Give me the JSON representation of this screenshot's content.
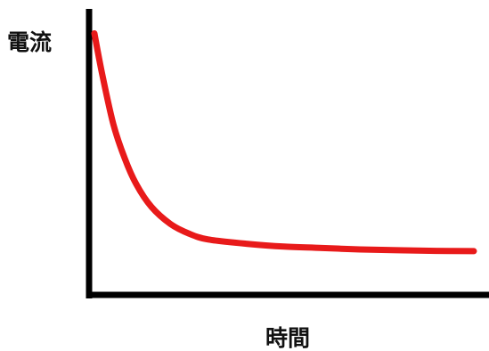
{
  "chart_data": {
    "type": "line",
    "title": "",
    "xlabel": "時間",
    "ylabel": "電流",
    "x_ticks_shown": false,
    "y_ticks_shown": false,
    "grid": false,
    "legend": "none",
    "xlim": [
      0,
      1
    ],
    "ylim": [
      0,
      1
    ],
    "series": [
      {
        "color": "#e81a1a",
        "x": [
          0.0,
          0.02,
          0.05,
          0.08,
          0.11,
          0.15,
          0.2,
          0.25,
          0.3,
          0.4,
          0.5,
          0.6,
          0.7,
          0.8,
          0.9,
          1.0
        ],
        "y": [
          0.92,
          0.78,
          0.6,
          0.48,
          0.39,
          0.31,
          0.25,
          0.215,
          0.195,
          0.18,
          0.17,
          0.165,
          0.16,
          0.157,
          0.155,
          0.154
        ]
      }
    ]
  },
  "colors": {
    "axis": "#000000",
    "curve": "#e81a1a",
    "background": "#ffffff"
  }
}
